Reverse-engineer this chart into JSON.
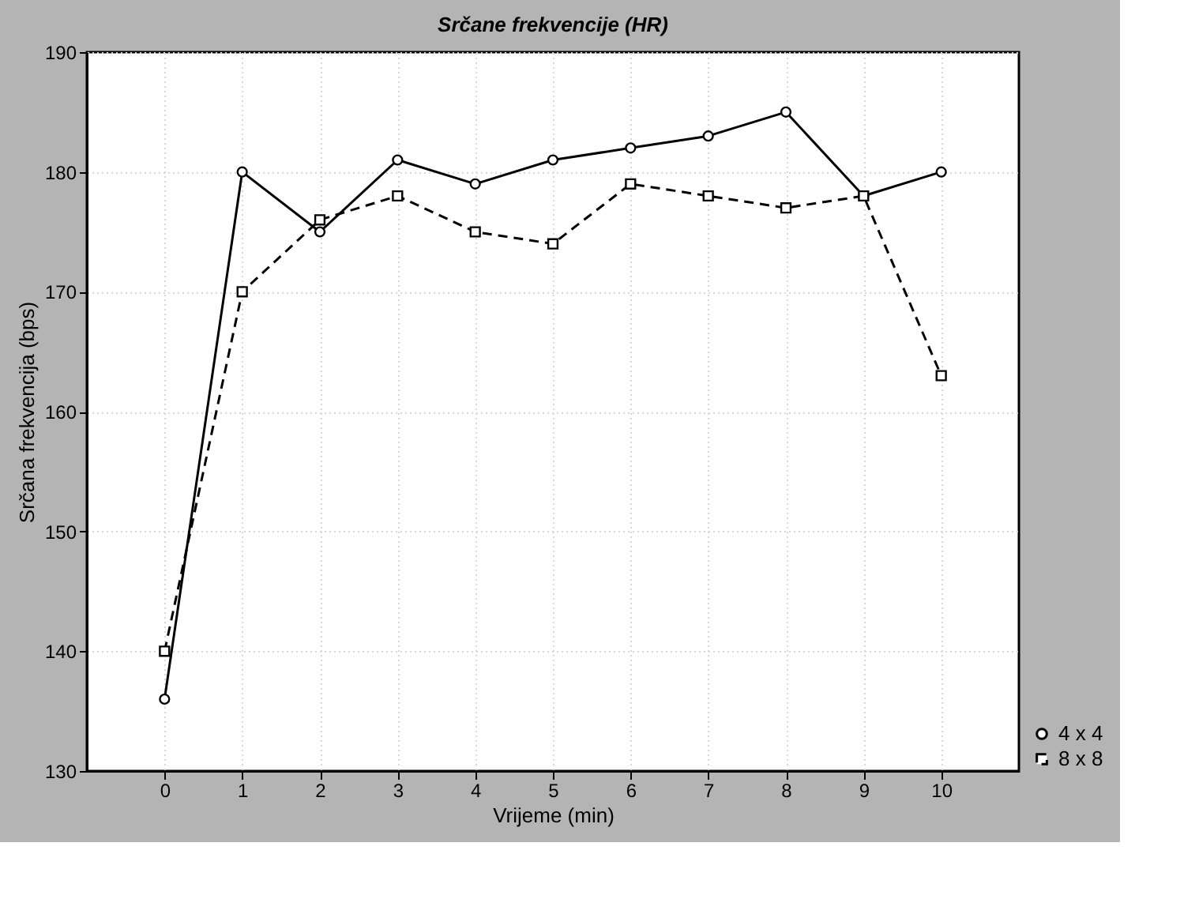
{
  "chart_data": {
    "type": "line",
    "title": "Srčane frekvencije (HR)",
    "xlabel": "Vrijeme (min)",
    "ylabel": "Srčana frekvencija (bps)",
    "x": [
      0,
      1,
      2,
      3,
      4,
      5,
      6,
      7,
      8,
      9,
      10
    ],
    "series": [
      {
        "name": "4 x 4",
        "color": "#000000",
        "marker": "circle",
        "line_style": "solid",
        "values": [
          136,
          180,
          175,
          181,
          179,
          181,
          182,
          183,
          185,
          178,
          180
        ]
      },
      {
        "name": "8 x 8",
        "color": "#000000",
        "marker": "square",
        "line_style": "dashed",
        "values": [
          140,
          170,
          176,
          178,
          175,
          174,
          179,
          178,
          177,
          178,
          163
        ]
      }
    ],
    "xlim": [
      -1,
      11
    ],
    "xticks": [
      0,
      1,
      2,
      3,
      4,
      5,
      6,
      7,
      8,
      9,
      10
    ],
    "ylim": [
      130,
      190
    ],
    "yticks": [
      130,
      140,
      150,
      160,
      170,
      180,
      190
    ],
    "grid": true,
    "legend": "bottom right"
  }
}
